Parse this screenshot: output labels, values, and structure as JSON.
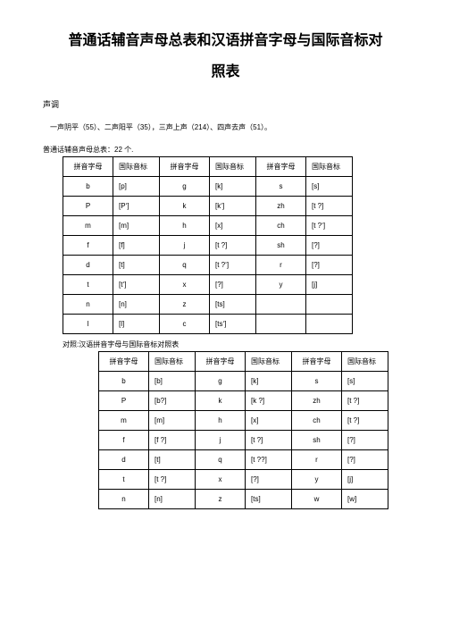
{
  "title_line1": "普通话辅音声母总表和汉语拼音字母与国际音标对",
  "title_line2": "照表",
  "subhead": "声调",
  "tone_note": "一声阴平（55）、二声阳平（35），三声上声（214）、四声去声（51）。",
  "table1_caption": "普通话辅音声母总表：22 个.",
  "table2_caption": "对照:汉语拼音字母与国际音标对照表",
  "headers": {
    "pinyin": "拼音字母",
    "ipa": "国际音标"
  },
  "table1": [
    [
      "b",
      "[p]",
      "g",
      "[k]",
      "s",
      "[s]"
    ],
    [
      "P",
      "[P‘]",
      "k",
      "[k‘]",
      "zh",
      "[t ?]"
    ],
    [
      "m",
      "[m]",
      "h",
      "[x]",
      "ch",
      "[t ?‘]"
    ],
    [
      "f",
      "[f]",
      "j",
      "[t ?]",
      "sh",
      "[?]"
    ],
    [
      "d",
      "[t]",
      "q",
      "[t ?‘]",
      "r",
      "[?]"
    ],
    [
      "t",
      "[t‘]",
      "x",
      "[?]",
      "y",
      "[j]"
    ],
    [
      "n",
      "[n]",
      "z",
      "[ts]",
      "",
      ""
    ],
    [
      "l",
      "[l]",
      "c",
      "[ts‘]",
      "",
      ""
    ]
  ],
  "table2": [
    [
      "b",
      "[b]",
      "g",
      "[k]",
      "s",
      "[s]"
    ],
    [
      "P",
      "[b?]",
      "k",
      "[k ?]",
      "zh",
      "[t ?]"
    ],
    [
      "m",
      "[m]",
      "h",
      "[x]",
      "ch",
      "[t ?]"
    ],
    [
      "f",
      "[f ?]",
      "j",
      "[t ?]",
      "sh",
      "[?]"
    ],
    [
      "d",
      "[t]",
      "q",
      "[t ??]",
      "r",
      "[?]"
    ],
    [
      "t",
      "[t ?]",
      "x",
      "[?]",
      "y",
      "[j]"
    ],
    [
      "n",
      "[n]",
      "z",
      "[ts]",
      "w",
      "[w]"
    ]
  ]
}
